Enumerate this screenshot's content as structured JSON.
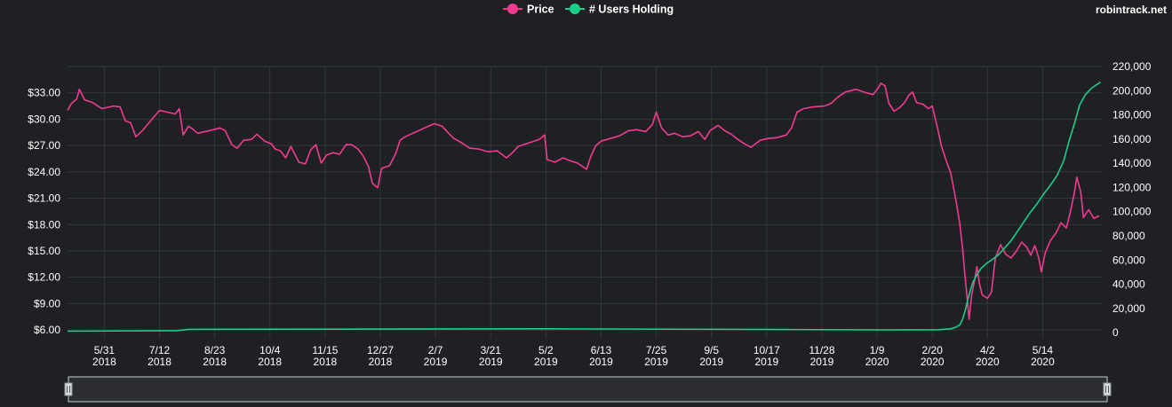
{
  "site": "robintrack.net",
  "colors": {
    "background": "#1e2023",
    "grid": "#34373c",
    "price": "#f23b8f",
    "users": "#19d08a",
    "navigator_fill": "#2c2e32",
    "navigator_border": "#c7cbd1"
  },
  "chart_data": {
    "type": "line",
    "title": "",
    "legend": {
      "placement": "top-center",
      "entries": [
        "Price",
        "# Users Holding"
      ]
    },
    "grid": true,
    "x_ticks": [
      {
        "date": "2018-05-31",
        "label": "5/31",
        "year": "2018"
      },
      {
        "date": "2018-07-12",
        "label": "7/12",
        "year": "2018"
      },
      {
        "date": "2018-08-23",
        "label": "8/23",
        "year": "2018"
      },
      {
        "date": "2018-10-04",
        "label": "10/4",
        "year": "2018"
      },
      {
        "date": "2018-11-15",
        "label": "11/15",
        "year": "2018"
      },
      {
        "date": "2018-12-27",
        "label": "12/27",
        "year": "2018"
      },
      {
        "date": "2019-02-07",
        "label": "2/7",
        "year": "2019"
      },
      {
        "date": "2019-03-21",
        "label": "3/21",
        "year": "2019"
      },
      {
        "date": "2019-05-02",
        "label": "5/2",
        "year": "2019"
      },
      {
        "date": "2019-06-13",
        "label": "6/13",
        "year": "2019"
      },
      {
        "date": "2019-07-25",
        "label": "7/25",
        "year": "2019"
      },
      {
        "date": "2019-09-05",
        "label": "9/5",
        "year": "2019"
      },
      {
        "date": "2019-10-17",
        "label": "10/17",
        "year": "2019"
      },
      {
        "date": "2019-11-28",
        "label": "11/28",
        "year": "2019"
      },
      {
        "date": "2020-01-09",
        "label": "1/9",
        "year": "2020"
      },
      {
        "date": "2020-02-20",
        "label": "2/20",
        "year": "2020"
      },
      {
        "date": "2020-04-02",
        "label": "4/2",
        "year": "2020"
      },
      {
        "date": "2020-05-14",
        "label": "5/14",
        "year": "2020"
      }
    ],
    "x_range": [
      "2018-05-03",
      "2020-06-28"
    ],
    "y_left": {
      "range": [
        5,
        36
      ],
      "ticks": [
        6,
        9,
        12,
        15,
        18,
        21,
        24,
        27,
        30,
        33
      ],
      "tick_labels": [
        "$6.00",
        "$9.00",
        "$12.00",
        "$15.00",
        "$18.00",
        "$21.00",
        "$24.00",
        "$27.00",
        "$30.00",
        "$33.00"
      ]
    },
    "y_right": {
      "range": [
        -5000,
        220000
      ],
      "ticks": [
        0,
        20000,
        40000,
        60000,
        80000,
        100000,
        120000,
        140000,
        160000,
        180000,
        200000,
        220000
      ],
      "tick_labels": [
        "0",
        "20,000",
        "40,000",
        "60,000",
        "80,000",
        "100,000",
        "120,000",
        "140,000",
        "160,000",
        "180,000",
        "200,000",
        "220,000"
      ]
    },
    "series": [
      {
        "name": "Price",
        "axis": "left",
        "points": [
          [
            "2018-05-03",
            31.0
          ],
          [
            "2018-05-06",
            31.8
          ],
          [
            "2018-05-10",
            32.3
          ],
          [
            "2018-05-12",
            33.4
          ],
          [
            "2018-05-16",
            32.2
          ],
          [
            "2018-05-22",
            31.9
          ],
          [
            "2018-05-29",
            31.2
          ],
          [
            "2018-06-07",
            31.5
          ],
          [
            "2018-06-12",
            31.4
          ],
          [
            "2018-06-16",
            29.8
          ],
          [
            "2018-06-20",
            29.6
          ],
          [
            "2018-06-24",
            28.0
          ],
          [
            "2018-06-29",
            28.7
          ],
          [
            "2018-07-04",
            29.6
          ],
          [
            "2018-07-08",
            30.3
          ],
          [
            "2018-07-12",
            31.0
          ],
          [
            "2018-07-18",
            30.8
          ],
          [
            "2018-07-24",
            30.6
          ],
          [
            "2018-07-27",
            31.2
          ],
          [
            "2018-07-30",
            28.2
          ],
          [
            "2018-08-03",
            29.2
          ],
          [
            "2018-08-06",
            28.9
          ],
          [
            "2018-08-10",
            28.4
          ],
          [
            "2018-08-16",
            28.6
          ],
          [
            "2018-08-22",
            28.8
          ],
          [
            "2018-08-27",
            29.0
          ],
          [
            "2018-08-31",
            28.7
          ],
          [
            "2018-09-05",
            27.1
          ],
          [
            "2018-09-09",
            26.7
          ],
          [
            "2018-09-14",
            27.6
          ],
          [
            "2018-09-20",
            27.7
          ],
          [
            "2018-09-24",
            28.3
          ],
          [
            "2018-09-30",
            27.5
          ],
          [
            "2018-10-05",
            27.2
          ],
          [
            "2018-10-08",
            26.6
          ],
          [
            "2018-10-12",
            26.4
          ],
          [
            "2018-10-16",
            25.6
          ],
          [
            "2018-10-20",
            26.9
          ],
          [
            "2018-10-26",
            25.1
          ],
          [
            "2018-10-31",
            24.9
          ],
          [
            "2018-11-04",
            26.5
          ],
          [
            "2018-11-08",
            27.1
          ],
          [
            "2018-11-12",
            25.0
          ],
          [
            "2018-11-16",
            25.9
          ],
          [
            "2018-11-21",
            26.2
          ],
          [
            "2018-11-26",
            26.0
          ],
          [
            "2018-12-01",
            27.1
          ],
          [
            "2018-12-05",
            27.1
          ],
          [
            "2018-12-10",
            26.6
          ],
          [
            "2018-12-14",
            25.8
          ],
          [
            "2018-12-18",
            24.6
          ],
          [
            "2018-12-21",
            22.7
          ],
          [
            "2018-12-25",
            22.2
          ],
          [
            "2018-12-28",
            24.4
          ],
          [
            "2019-01-03",
            24.7
          ],
          [
            "2019-01-08",
            26.2
          ],
          [
            "2019-01-11",
            27.6
          ],
          [
            "2019-01-15",
            28.0
          ],
          [
            "2019-02-06",
            29.5
          ],
          [
            "2019-02-12",
            29.2
          ],
          [
            "2019-02-17",
            28.4
          ],
          [
            "2019-02-21",
            27.8
          ],
          [
            "2019-02-26",
            27.4
          ],
          [
            "2019-03-05",
            26.7
          ],
          [
            "2019-03-12",
            26.6
          ],
          [
            "2019-03-19",
            26.3
          ],
          [
            "2019-03-26",
            26.4
          ],
          [
            "2019-04-02",
            25.6
          ],
          [
            "2019-04-06",
            26.1
          ],
          [
            "2019-04-11",
            26.9
          ],
          [
            "2019-04-17",
            27.2
          ],
          [
            "2019-04-23",
            27.5
          ],
          [
            "2019-04-27",
            27.7
          ],
          [
            "2019-05-01",
            28.2
          ],
          [
            "2019-05-03",
            25.4
          ],
          [
            "2019-05-09",
            25.1
          ],
          [
            "2019-05-15",
            25.6
          ],
          [
            "2019-05-20",
            25.3
          ],
          [
            "2019-05-26",
            25.0
          ],
          [
            "2019-06-02",
            24.3
          ],
          [
            "2019-06-05",
            25.7
          ],
          [
            "2019-06-09",
            27.0
          ],
          [
            "2019-06-13",
            27.5
          ],
          [
            "2019-06-20",
            27.8
          ],
          [
            "2019-06-27",
            28.1
          ],
          [
            "2019-07-04",
            28.7
          ],
          [
            "2019-07-10",
            28.8
          ],
          [
            "2019-07-17",
            28.6
          ],
          [
            "2019-07-22",
            29.4
          ],
          [
            "2019-07-25",
            30.8
          ],
          [
            "2019-07-29",
            29.0
          ],
          [
            "2019-08-03",
            28.2
          ],
          [
            "2019-08-08",
            28.4
          ],
          [
            "2019-08-14",
            28.0
          ],
          [
            "2019-08-20",
            28.1
          ],
          [
            "2019-08-26",
            28.6
          ],
          [
            "2019-08-31",
            27.7
          ],
          [
            "2019-09-04",
            28.7
          ],
          [
            "2019-09-10",
            29.3
          ],
          [
            "2019-09-15",
            28.7
          ],
          [
            "2019-09-20",
            28.3
          ],
          [
            "2019-09-25",
            27.7
          ],
          [
            "2019-09-30",
            27.2
          ],
          [
            "2019-10-05",
            26.8
          ],
          [
            "2019-10-12",
            27.6
          ],
          [
            "2019-10-18",
            27.8
          ],
          [
            "2019-10-25",
            27.9
          ],
          [
            "2019-11-01",
            28.2
          ],
          [
            "2019-11-05",
            29.0
          ],
          [
            "2019-11-09",
            30.8
          ],
          [
            "2019-11-14",
            31.2
          ],
          [
            "2019-11-21",
            31.4
          ],
          [
            "2019-11-30",
            31.5
          ],
          [
            "2019-12-05",
            31.8
          ],
          [
            "2019-12-10",
            32.5
          ],
          [
            "2019-12-16",
            33.1
          ],
          [
            "2019-12-24",
            33.4
          ],
          [
            "2020-01-01",
            33.0
          ],
          [
            "2020-01-06",
            32.8
          ],
          [
            "2020-01-10",
            33.6
          ],
          [
            "2020-01-12",
            34.1
          ],
          [
            "2020-01-15",
            33.8
          ],
          [
            "2020-01-18",
            31.8
          ],
          [
            "2020-01-22",
            30.9
          ],
          [
            "2020-01-26",
            31.3
          ],
          [
            "2020-01-30",
            31.9
          ],
          [
            "2020-02-02",
            32.7
          ],
          [
            "2020-02-05",
            33.1
          ],
          [
            "2020-02-08",
            31.9
          ],
          [
            "2020-02-13",
            31.7
          ],
          [
            "2020-02-17",
            31.2
          ],
          [
            "2020-02-20",
            31.5
          ],
          [
            "2020-02-24",
            29.0
          ],
          [
            "2020-02-27",
            26.9
          ],
          [
            "2020-03-02",
            25.1
          ],
          [
            "2020-03-05",
            23.9
          ],
          [
            "2020-03-08",
            21.6
          ],
          [
            "2020-03-10",
            19.9
          ],
          [
            "2020-03-12",
            18.0
          ],
          [
            "2020-03-14",
            15.4
          ],
          [
            "2020-03-16",
            12.0
          ],
          [
            "2020-03-18",
            9.0
          ],
          [
            "2020-03-19",
            7.2
          ],
          [
            "2020-03-21",
            10.0
          ],
          [
            "2020-03-23",
            11.5
          ],
          [
            "2020-03-25",
            13.2
          ],
          [
            "2020-03-27",
            11.2
          ],
          [
            "2020-03-29",
            10.0
          ],
          [
            "2020-04-02",
            9.6
          ],
          [
            "2020-04-05",
            10.3
          ],
          [
            "2020-04-08",
            14.2
          ],
          [
            "2020-04-12",
            15.7
          ],
          [
            "2020-04-16",
            14.6
          ],
          [
            "2020-04-20",
            14.2
          ],
          [
            "2020-04-24",
            15.0
          ],
          [
            "2020-04-28",
            16.0
          ],
          [
            "2020-05-02",
            15.4
          ],
          [
            "2020-05-05",
            14.5
          ],
          [
            "2020-05-08",
            15.6
          ],
          [
            "2020-05-11",
            14.2
          ],
          [
            "2020-05-13",
            12.6
          ],
          [
            "2020-05-16",
            14.8
          ],
          [
            "2020-05-20",
            16.2
          ],
          [
            "2020-05-24",
            17.0
          ],
          [
            "2020-05-28",
            18.2
          ],
          [
            "2020-06-01",
            17.6
          ],
          [
            "2020-06-04",
            19.4
          ],
          [
            "2020-06-07",
            21.5
          ],
          [
            "2020-06-09",
            23.4
          ],
          [
            "2020-06-12",
            21.7
          ],
          [
            "2020-06-14",
            18.8
          ],
          [
            "2020-06-18",
            19.7
          ],
          [
            "2020-06-22",
            18.7
          ],
          [
            "2020-06-26",
            19.0
          ]
        ]
      },
      {
        "name": "# Users Holding",
        "axis": "right",
        "points": [
          [
            "2018-05-03",
            1200
          ],
          [
            "2018-07-25",
            1700
          ],
          [
            "2018-08-03",
            2800
          ],
          [
            "2019-05-01",
            3200
          ],
          [
            "2019-11-01",
            2600
          ],
          [
            "2020-01-15",
            2300
          ],
          [
            "2020-02-25",
            2500
          ],
          [
            "2020-03-05",
            3200
          ],
          [
            "2020-03-09",
            4500
          ],
          [
            "2020-03-12",
            6500
          ],
          [
            "2020-03-14",
            11000
          ],
          [
            "2020-03-16",
            18000
          ],
          [
            "2020-03-18",
            27000
          ],
          [
            "2020-03-20",
            35000
          ],
          [
            "2020-03-22",
            42000
          ],
          [
            "2020-03-25",
            48000
          ],
          [
            "2020-03-28",
            53000
          ],
          [
            "2020-04-01",
            57000
          ],
          [
            "2020-04-05",
            60000
          ],
          [
            "2020-04-10",
            64000
          ],
          [
            "2020-04-15",
            70000
          ],
          [
            "2020-04-20",
            76000
          ],
          [
            "2020-04-25",
            84000
          ],
          [
            "2020-04-30",
            92000
          ],
          [
            "2020-05-05",
            100000
          ],
          [
            "2020-05-10",
            107000
          ],
          [
            "2020-05-15",
            115000
          ],
          [
            "2020-05-20",
            122000
          ],
          [
            "2020-05-25",
            130000
          ],
          [
            "2020-05-30",
            142000
          ],
          [
            "2020-06-03",
            158000
          ],
          [
            "2020-06-07",
            172000
          ],
          [
            "2020-06-11",
            188000
          ],
          [
            "2020-06-15",
            196000
          ],
          [
            "2020-06-20",
            202000
          ],
          [
            "2020-06-24",
            205000
          ],
          [
            "2020-06-27",
            207000
          ]
        ]
      }
    ]
  }
}
